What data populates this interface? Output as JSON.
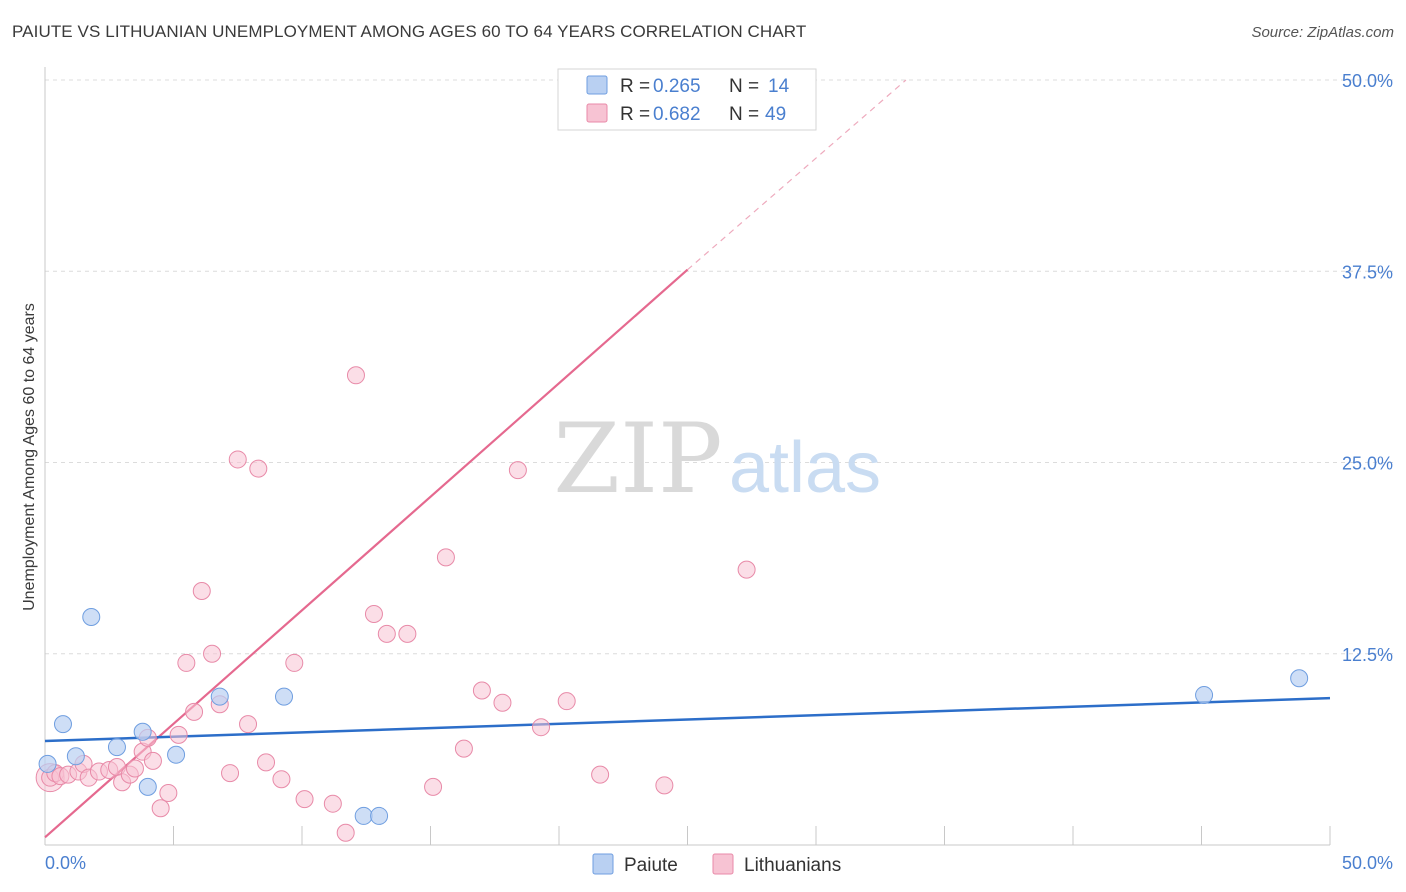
{
  "title": "PAIUTE VS LITHUANIAN UNEMPLOYMENT AMONG AGES 60 TO 64 YEARS CORRELATION CHART",
  "source": "Source: ZipAtlas.com",
  "watermark": {
    "zip": "ZIP",
    "atlas": "atlas"
  },
  "colors": {
    "paiute_fill": "#b9d0f2",
    "paiute_stroke": "#6f9ee0",
    "paiute_line": "#2c6ec9",
    "lith_fill": "#f7c3d3",
    "lith_stroke": "#e88aa8",
    "lith_line": "#e5698f",
    "tick_label": "#4a7fcf",
    "grid": "#dcdcdc"
  },
  "legend": [
    {
      "series": "Paiute",
      "r_label": "R = ",
      "r_value": "0.265",
      "n_label": "N = ",
      "n_value": "14"
    },
    {
      "series": "Lithuanians",
      "r_label": "R = ",
      "r_value": "0.682",
      "n_label": "N = ",
      "n_value": "49"
    }
  ],
  "chart_data": {
    "type": "scatter",
    "title": "PAIUTE VS LITHUANIAN UNEMPLOYMENT AMONG AGES 60 TO 64 YEARS CORRELATION CHART",
    "xlabel": "",
    "ylabel": "Unemployment Among Ages 60 to 64 years",
    "xlim": [
      0,
      50
    ],
    "ylim": [
      0,
      50
    ],
    "x_tick_labels": [
      "0.0%",
      "50.0%"
    ],
    "y_ticks": [
      {
        "value": 12.5,
        "label": "12.5%"
      },
      {
        "value": 25.0,
        "label": "25.0%"
      },
      {
        "value": 37.5,
        "label": "37.5%"
      },
      {
        "value": 50.0,
        "label": "50.0%"
      }
    ],
    "grid": true,
    "legend_position": "top-center",
    "series": [
      {
        "name": "Paiute",
        "points": [
          [
            0.1,
            5.3
          ],
          [
            0.7,
            7.9
          ],
          [
            1.2,
            5.8
          ],
          [
            1.8,
            14.9
          ],
          [
            2.8,
            6.4
          ],
          [
            3.8,
            7.4
          ],
          [
            4.0,
            3.8
          ],
          [
            5.1,
            5.9
          ],
          [
            6.8,
            9.7
          ],
          [
            9.3,
            9.7
          ],
          [
            12.4,
            1.9
          ],
          [
            13.0,
            1.9
          ],
          [
            45.1,
            9.8
          ],
          [
            48.8,
            10.9
          ]
        ],
        "trend": {
          "x0": 0,
          "y0": 6.8,
          "x1": 50,
          "y1": 9.6
        }
      },
      {
        "name": "Lithuanians",
        "points": [
          [
            0.2,
            4.4
          ],
          [
            0.4,
            4.7
          ],
          [
            0.6,
            4.5
          ],
          [
            0.9,
            4.6
          ],
          [
            1.3,
            4.8
          ],
          [
            1.5,
            5.3
          ],
          [
            1.7,
            4.4
          ],
          [
            2.1,
            4.8
          ],
          [
            2.5,
            4.9
          ],
          [
            2.8,
            5.1
          ],
          [
            3.0,
            4.1
          ],
          [
            3.3,
            4.6
          ],
          [
            3.5,
            5.0
          ],
          [
            3.8,
            6.1
          ],
          [
            4.0,
            7.0
          ],
          [
            4.2,
            5.5
          ],
          [
            4.5,
            2.4
          ],
          [
            4.8,
            3.4
          ],
          [
            5.2,
            7.2
          ],
          [
            5.5,
            11.9
          ],
          [
            5.8,
            8.7
          ],
          [
            6.1,
            16.6
          ],
          [
            6.5,
            12.5
          ],
          [
            6.8,
            9.2
          ],
          [
            7.2,
            4.7
          ],
          [
            7.5,
            25.2
          ],
          [
            7.9,
            7.9
          ],
          [
            8.3,
            24.6
          ],
          [
            8.6,
            5.4
          ],
          [
            9.2,
            4.3
          ],
          [
            9.7,
            11.9
          ],
          [
            10.1,
            3.0
          ],
          [
            11.2,
            2.7
          ],
          [
            11.7,
            0.8
          ],
          [
            12.1,
            30.7
          ],
          [
            12.8,
            15.1
          ],
          [
            13.3,
            13.8
          ],
          [
            14.1,
            13.8
          ],
          [
            15.1,
            3.8
          ],
          [
            15.6,
            18.8
          ],
          [
            16.3,
            6.3
          ],
          [
            17.0,
            10.1
          ],
          [
            17.8,
            9.3
          ],
          [
            18.4,
            24.5
          ],
          [
            19.3,
            7.7
          ],
          [
            20.3,
            9.4
          ],
          [
            21.6,
            4.6
          ],
          [
            24.1,
            3.9
          ],
          [
            27.3,
            18.0
          ]
        ],
        "trend": {
          "x0": 0,
          "y0": 0.5,
          "x1": 25,
          "y1": 37.6,
          "dashed_to_x": 33.5,
          "dashed_to_y": 50
        }
      }
    ]
  }
}
